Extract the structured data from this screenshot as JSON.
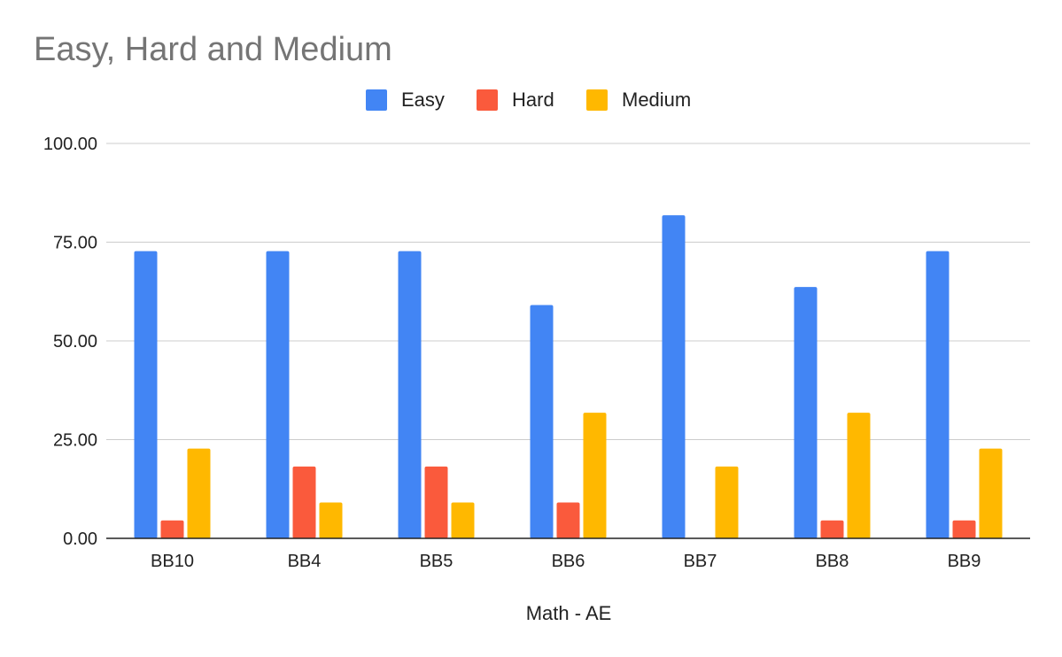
{
  "chart_data": {
    "type": "bar",
    "title": "Easy, Hard and Medium",
    "xlabel": "Math - AE",
    "ylabel": "",
    "categories": [
      "BB10",
      "BB4",
      "BB5",
      "BB6",
      "BB7",
      "BB8",
      "BB9"
    ],
    "series": [
      {
        "name": "Easy",
        "color": "#4285f4",
        "values": [
          72.73,
          72.73,
          72.73,
          59.09,
          81.82,
          63.64,
          72.73
        ]
      },
      {
        "name": "Hard",
        "color": "#fa5a3c",
        "values": [
          4.55,
          18.18,
          18.18,
          9.09,
          0,
          4.55,
          4.55
        ]
      },
      {
        "name": "Medium",
        "color": "#ffb800",
        "values": [
          22.73,
          9.09,
          9.09,
          31.82,
          18.18,
          31.82,
          22.73
        ]
      }
    ],
    "ylim": [
      0,
      100
    ],
    "yticks": [
      "0.00",
      "25.00",
      "50.00",
      "75.00",
      "100.00"
    ],
    "ytick_values": [
      0,
      25,
      50,
      75,
      100
    ],
    "grid": true,
    "legend_position": "top-center"
  }
}
